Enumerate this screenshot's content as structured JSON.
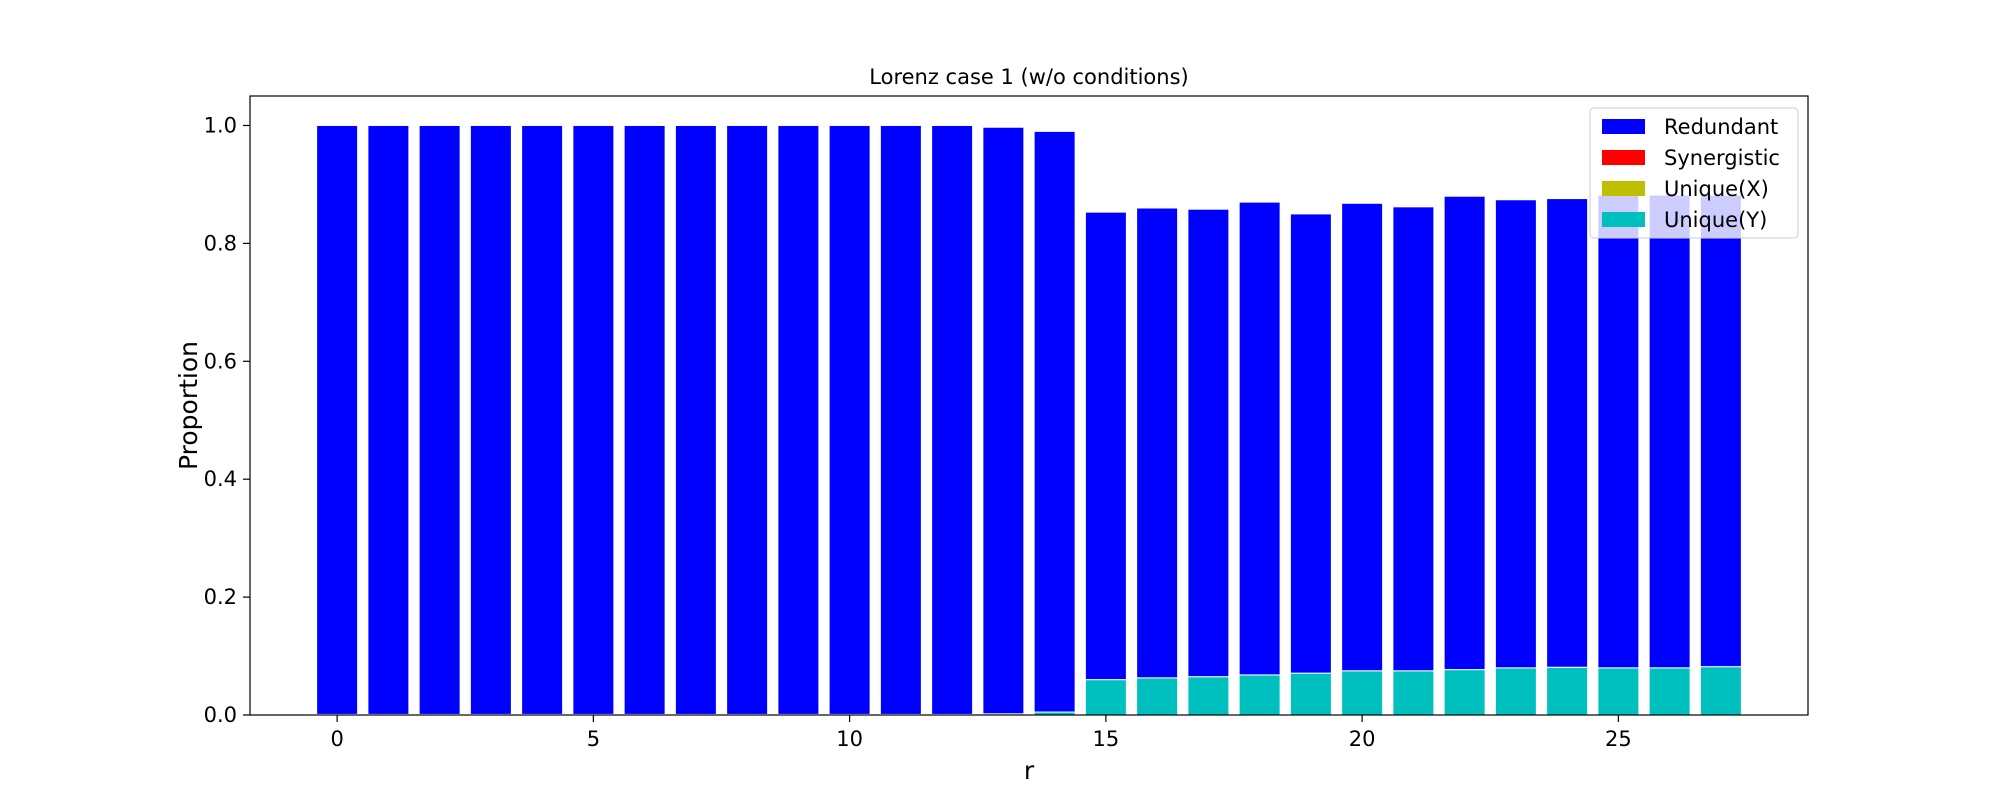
{
  "chart_data": {
    "type": "bar",
    "stacked": true,
    "title": "Lorenz case 1 (w/o conditions)",
    "xlabel": "r",
    "ylabel": "Proportion",
    "x": [
      0,
      1,
      2,
      3,
      4,
      5,
      6,
      7,
      8,
      9,
      10,
      11,
      12,
      13,
      14,
      15,
      16,
      17,
      18,
      19,
      20,
      21,
      22,
      23,
      24,
      25,
      26,
      27
    ],
    "xlim": [
      -1.7,
      28.7
    ],
    "ylim": [
      0,
      1.05
    ],
    "xticks": [
      0,
      5,
      10,
      15,
      20,
      25
    ],
    "yticks": [
      "0.0",
      "0.2",
      "0.4",
      "0.6",
      "0.8",
      "1.0"
    ],
    "grid": false,
    "legend_position": "top-right",
    "series": [
      {
        "name": "Unique(Y)",
        "color": "#00bfbf",
        "values": [
          0.001,
          0.001,
          0.001,
          0.001,
          0.001,
          0.001,
          0.001,
          0.001,
          0.001,
          0.001,
          0.001,
          0.001,
          0.001,
          0.002,
          0.005,
          0.06,
          0.063,
          0.065,
          0.068,
          0.071,
          0.075,
          0.075,
          0.077,
          0.08,
          0.081,
          0.08,
          0.08,
          0.082
        ]
      },
      {
        "name": "Unique(X)",
        "color": "#bfbf00",
        "values": [
          0,
          0,
          0,
          0,
          0,
          0,
          0,
          0,
          0,
          0,
          0,
          0,
          0,
          0,
          0,
          0,
          0,
          0,
          0,
          0,
          0,
          0,
          0,
          0,
          0,
          0,
          0,
          0
        ]
      },
      {
        "name": "Synergistic",
        "color": "#ff0000",
        "values": [
          0,
          0,
          0,
          0,
          0,
          0,
          0,
          0,
          0,
          0,
          0,
          0,
          0,
          0,
          0,
          0,
          0,
          0,
          0,
          0,
          0,
          0,
          0,
          0,
          0,
          0,
          0,
          0
        ]
      },
      {
        "name": "Redundant",
        "color": "#0000ff",
        "values": [
          0.999,
          0.999,
          0.999,
          0.999,
          0.999,
          0.999,
          0.999,
          0.999,
          0.999,
          0.999,
          0.999,
          0.999,
          0.999,
          0.995,
          0.985,
          0.793,
          0.797,
          0.793,
          0.802,
          0.779,
          0.793,
          0.787,
          0.803,
          0.794,
          0.795,
          0.802,
          0.802,
          0.8
        ]
      }
    ],
    "legend_order": [
      "Redundant",
      "Synergistic",
      "Unique(X)",
      "Unique(Y)"
    ]
  }
}
